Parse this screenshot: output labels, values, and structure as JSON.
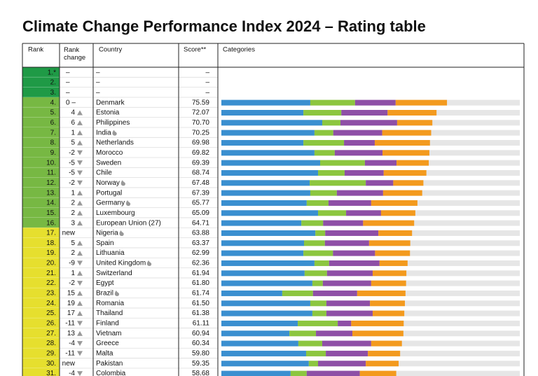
{
  "header": {
    "title": "Climate Change Performance Index 2024 – Rating table"
  },
  "table": {
    "columns": [
      "Rank",
      "Rank change",
      "Country",
      "Score**",
      "Categories"
    ],
    "tier_colors": {
      "top": "#1f9a46",
      "high": "#77b843",
      "medium": "#e6df2e"
    },
    "category_colors": [
      "#3a8fd0",
      "#8cc63f",
      "#8e4fa6",
      "#f39a1e"
    ],
    "xlim": [
      0,
      100
    ],
    "rows": [
      {
        "rank": "1.*",
        "rank_change": "–",
        "country": "–",
        "score": "–",
        "tier": "top",
        "categories": []
      },
      {
        "rank": "2.",
        "rank_change": "–",
        "country": "–",
        "score": "–",
        "tier": "top",
        "categories": []
      },
      {
        "rank": "3.",
        "rank_change": "–",
        "country": "–",
        "score": "–",
        "tier": "top",
        "categories": []
      },
      {
        "rank": "4.",
        "rank_change": "0 –",
        "country": "Denmark",
        "score": "75.59",
        "tier": "high",
        "categories": [
          29.8,
          15.0,
          13.6,
          17.2
        ]
      },
      {
        "rank": "5.",
        "rank_change": "4",
        "trend": "up",
        "country": "Estonia",
        "score": "72.07",
        "tier": "high",
        "categories": [
          27.5,
          12.7,
          15.5,
          16.4
        ]
      },
      {
        "rank": "6.",
        "rank_change": "6",
        "trend": "up",
        "country": "Philippines",
        "score": "70.70",
        "tier": "high",
        "categories": [
          33.8,
          6.1,
          19.0,
          11.8
        ]
      },
      {
        "rank": "7.",
        "rank_change": "1",
        "trend": "up",
        "fossil": true,
        "country": "India",
        "score": "70.25",
        "tier": "high",
        "categories": [
          31.2,
          6.3,
          16.4,
          16.4
        ]
      },
      {
        "rank": "8.",
        "rank_change": "5",
        "trend": "up",
        "country": "Netherlands",
        "score": "69.98",
        "tier": "high",
        "categories": [
          27.5,
          13.6,
          10.3,
          18.5
        ]
      },
      {
        "rank": "9.",
        "rank_change": "-2",
        "trend": "down",
        "country": "Morocco",
        "score": "69.82",
        "tier": "high",
        "categories": [
          31.2,
          6.8,
          16.0,
          15.7
        ]
      },
      {
        "rank": "10.",
        "rank_change": "-5",
        "trend": "down",
        "country": "Sweden",
        "score": "69.39",
        "tier": "high",
        "categories": [
          33.1,
          15.0,
          10.6,
          10.8
        ]
      },
      {
        "rank": "11.",
        "rank_change": "-5",
        "trend": "down",
        "country": "Chile",
        "score": "68.74",
        "tier": "high",
        "categories": [
          32.4,
          8.9,
          13.1,
          14.3
        ]
      },
      {
        "rank": "12.",
        "rank_change": "-2",
        "trend": "down",
        "fossil": true,
        "country": "Norway",
        "score": "67.48",
        "tier": "high",
        "categories": [
          29.6,
          18.8,
          9.2,
          10.1
        ]
      },
      {
        "rank": "13.",
        "rank_change": "1",
        "trend": "up",
        "country": "Portugal",
        "score": "67.39",
        "tier": "high",
        "categories": [
          29.8,
          8.9,
          15.5,
          13.1
        ]
      },
      {
        "rank": "14.",
        "rank_change": "2",
        "trend": "up",
        "fossil": true,
        "country": "Germany",
        "score": "65.77",
        "tier": "high",
        "categories": [
          28.6,
          7.3,
          14.3,
          15.5
        ]
      },
      {
        "rank": "15.",
        "rank_change": "2",
        "trend": "up",
        "country": "Luxembourg",
        "score": "65.09",
        "tier": "high",
        "categories": [
          32.4,
          9.4,
          11.7,
          11.5
        ]
      },
      {
        "rank": "16.",
        "rank_change": "3",
        "trend": "up",
        "country": "European Union (27)",
        "score": "64.71",
        "tier": "high",
        "categories": [
          26.8,
          7.3,
          13.4,
          17.1
        ]
      },
      {
        "rank": "17.",
        "rank_change": "new",
        "fossil": true,
        "country": "Nigeria",
        "score": "63.88",
        "tier": "medium",
        "categories": [
          31.5,
          3.3,
          17.8,
          11.3
        ]
      },
      {
        "rank": "18.",
        "rank_change": "5",
        "trend": "up",
        "country": "Spain",
        "score": "63.37",
        "tier": "medium",
        "categories": [
          27.7,
          7.0,
          14.8,
          13.8
        ]
      },
      {
        "rank": "19.",
        "rank_change": "2",
        "trend": "up",
        "country": "Lithuania",
        "score": "62.99",
        "tier": "medium",
        "categories": [
          27.5,
          9.9,
          14.1,
          11.7
        ]
      },
      {
        "rank": "20.",
        "rank_change": "-9",
        "trend": "down",
        "fossil": true,
        "country": "United Kingdom",
        "score": "62.36",
        "tier": "medium",
        "categories": [
          31.2,
          4.9,
          16.9,
          9.4
        ]
      },
      {
        "rank": "21.",
        "rank_change": "1",
        "trend": "up",
        "country": "Switzerland",
        "score": "61.94",
        "tier": "medium",
        "categories": [
          27.9,
          7.5,
          15.3,
          11.3
        ]
      },
      {
        "rank": "22.",
        "rank_change": "-2",
        "trend": "down",
        "country": "Egypt",
        "score": "61.80",
        "tier": "medium",
        "categories": [
          30.5,
          3.5,
          16.2,
          11.7
        ]
      },
      {
        "rank": "23.",
        "rank_change": "15",
        "trend": "up",
        "fossil": true,
        "country": "Brazil",
        "score": "61.74",
        "tier": "medium",
        "categories": [
          20.4,
          10.3,
          14.8,
          16.2
        ]
      },
      {
        "rank": "24.",
        "rank_change": "19",
        "trend": "up",
        "country": "Romania",
        "score": "61.50",
        "tier": "medium",
        "categories": [
          29.8,
          5.4,
          14.6,
          11.7
        ]
      },
      {
        "rank": "25.",
        "rank_change": "17",
        "trend": "up",
        "country": "Thailand",
        "score": "61.38",
        "tier": "medium",
        "categories": [
          30.5,
          4.7,
          15.5,
          10.6
        ]
      },
      {
        "rank": "26.",
        "rank_change": "-11",
        "trend": "down",
        "country": "Finland",
        "score": "61.11",
        "tier": "medium",
        "categories": [
          25.6,
          13.4,
          4.5,
          17.6
        ]
      },
      {
        "rank": "27.",
        "rank_change": "13",
        "trend": "up",
        "country": "Vietnam",
        "score": "60.94",
        "tier": "medium",
        "categories": [
          22.8,
          8.9,
          12.2,
          17.1
        ]
      },
      {
        "rank": "28.",
        "rank_change": "-4",
        "trend": "down",
        "country": "Greece",
        "score": "60.34",
        "tier": "medium",
        "categories": [
          25.8,
          8.0,
          16.4,
          10.3
        ]
      },
      {
        "rank": "29.",
        "rank_change": "-11",
        "trend": "down",
        "country": "Malta",
        "score": "59.80",
        "tier": "medium",
        "categories": [
          28.4,
          6.6,
          14.1,
          10.8
        ]
      },
      {
        "rank": "30.",
        "rank_change": "new",
        "country": "Pakistan",
        "score": "59.35",
        "tier": "medium",
        "categories": [
          29.3,
          3.1,
          16.0,
          11.0
        ]
      },
      {
        "rank": "31.",
        "rank_change": "-4",
        "trend": "down",
        "country": "Colombia",
        "score": "58.68",
        "tier": "medium",
        "categories": [
          23.2,
          5.4,
          17.8,
          12.2
        ]
      }
    ]
  }
}
